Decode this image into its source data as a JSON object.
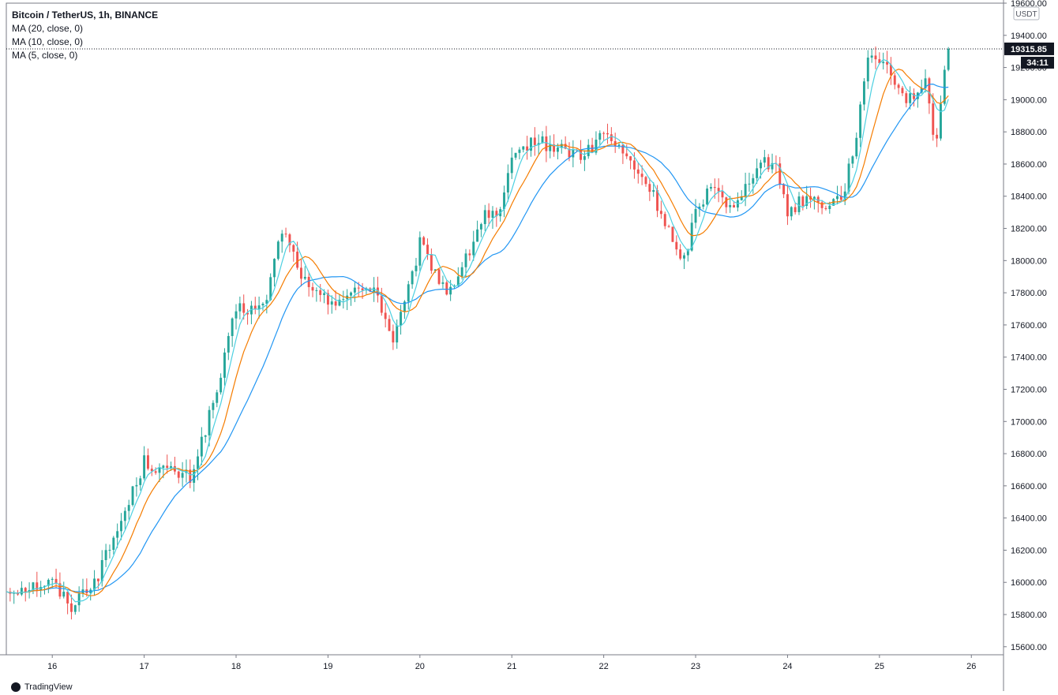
{
  "legend": {
    "title": "Bitcoin / TetherUS, 1h, BINANCE",
    "ma20": "MA (20, close, 0)",
    "ma10": "MA (10, close, 0)",
    "ma5": "MA (5, close, 0)"
  },
  "axis": {
    "currency": "USDT",
    "last_price_label": "19315.85",
    "countdown_label": "34:11"
  },
  "footer": {
    "brand": "TradingView"
  },
  "colors": {
    "up": "#26a69a",
    "down": "#ef5350",
    "ma20": "#2196f3",
    "ma10": "#f57c00",
    "ma5": "#4dd0e1",
    "grid_line": "#e0e3eb",
    "text": "#131722"
  },
  "chart_data": {
    "type": "candlestick",
    "interval": "1h",
    "ylim": [
      15550,
      19600
    ],
    "yticks": [
      15600,
      15800,
      16000,
      16200,
      16400,
      16600,
      16800,
      17000,
      17200,
      17400,
      17600,
      17800,
      18000,
      18200,
      18400,
      18600,
      18800,
      19000,
      19200,
      19400,
      19600
    ],
    "xticks": [
      "16",
      "17",
      "18",
      "19",
      "20",
      "21",
      "22",
      "23",
      "24",
      "25",
      "26"
    ],
    "x_start_day": 15.5,
    "x_end_day": 26.35,
    "last_price": 19315.85,
    "daily_closes": {
      "day": [
        15.5,
        16.0,
        16.2,
        16.5,
        16.8,
        17.0,
        17.2,
        17.5,
        17.8,
        18.0,
        18.3,
        18.5,
        18.8,
        19.0,
        19.3,
        19.5,
        19.7,
        19.85,
        20.0,
        20.3,
        20.5,
        20.7,
        20.85,
        21.0,
        21.2,
        21.5,
        21.8,
        22.0,
        22.3,
        22.5,
        22.7,
        22.85,
        23.0,
        23.2,
        23.4,
        23.5,
        23.7,
        23.9,
        24.0,
        24.2,
        24.4,
        24.6,
        24.75,
        24.9,
        25.1,
        25.3,
        25.5,
        25.6,
        25.75
      ],
      "close": [
        15950,
        16000,
        15850,
        16050,
        16450,
        16750,
        16700,
        16650,
        17200,
        17700,
        17700,
        18200,
        17800,
        17750,
        17800,
        17850,
        17500,
        17750,
        18100,
        17800,
        18000,
        18300,
        18250,
        18600,
        18750,
        18700,
        18650,
        18800,
        18600,
        18450,
        18200,
        17950,
        18300,
        18500,
        18300,
        18400,
        18650,
        18550,
        18300,
        18400,
        18350,
        18400,
        18800,
        19300,
        19200,
        19000,
        19100,
        18700,
        19315.85
      ]
    },
    "moving_averages": [
      "MA 20",
      "MA 10",
      "MA 5"
    ]
  }
}
